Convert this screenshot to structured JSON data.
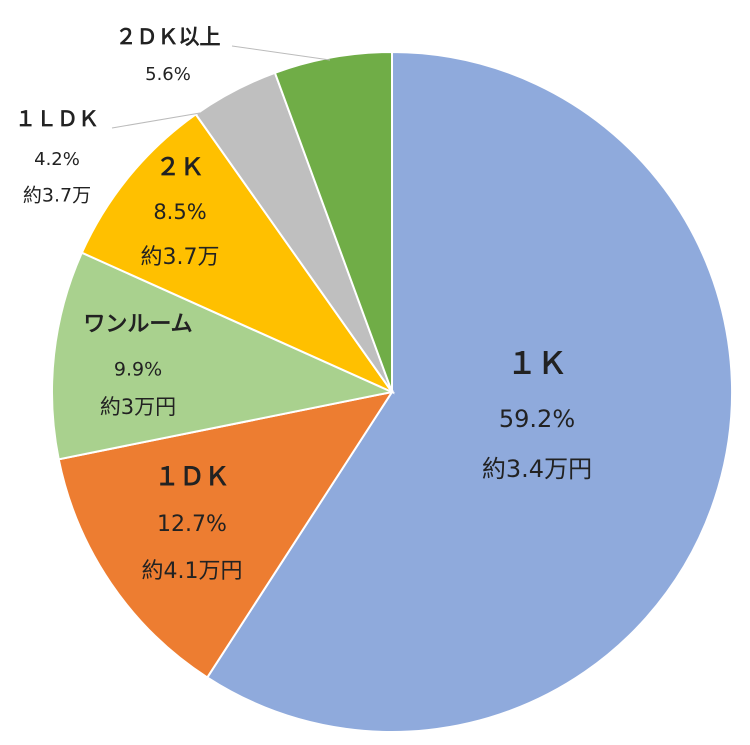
{
  "chart_data": {
    "type": "pie",
    "categories": [
      "１Ｋ",
      "１ＤＫ",
      "ワンルーム",
      "２Ｋ",
      "１ＬＤＫ",
      "２ＤＫ以上"
    ],
    "values": [
      59.2,
      12.7,
      9.9,
      8.5,
      4.2,
      5.6
    ],
    "value_labels": [
      "59.2%",
      "12.7%",
      "9.9%",
      "8.5%",
      "4.2%",
      "5.6%"
    ],
    "price_labels": [
      "約3.4万円",
      "約4.1万円",
      "約3万円",
      "約3.7万",
      "約3.7万",
      null
    ],
    "colors": [
      "#8faadc",
      "#ed7d31",
      "#a9d18e",
      "#ffc000",
      "#bfbfbf",
      "#70ad47"
    ]
  }
}
